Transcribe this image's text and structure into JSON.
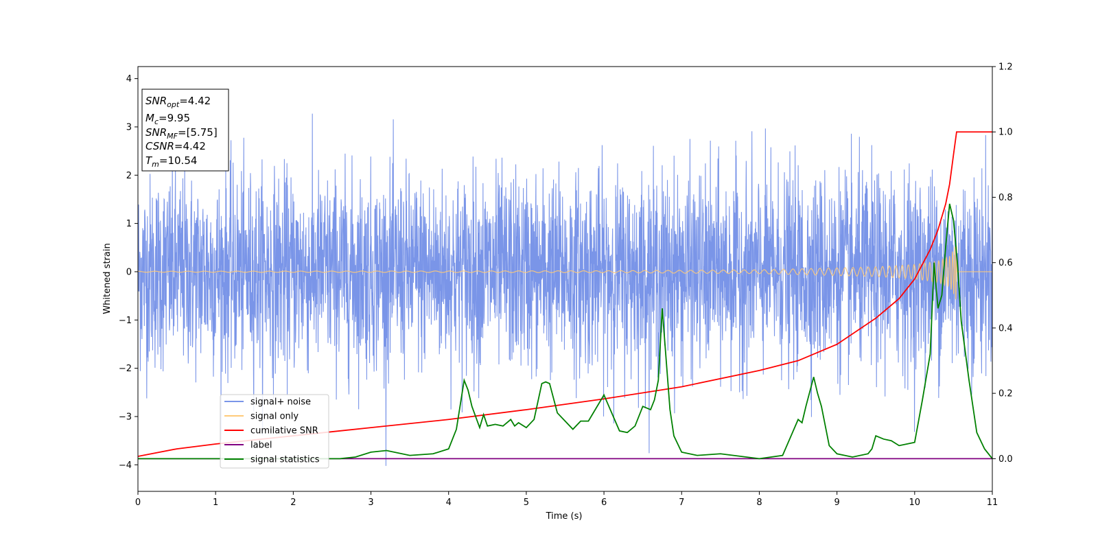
{
  "chart_data": {
    "type": "line",
    "xlabel": "Time (s)",
    "ylabel": "Whitened strain",
    "xlim": [
      0,
      11
    ],
    "ylim": [
      -4.55,
      4.25
    ],
    "y2lim": [
      -0.1,
      1.2
    ],
    "x_ticks": [
      0,
      1,
      2,
      3,
      4,
      5,
      6,
      7,
      8,
      9,
      10,
      11
    ],
    "y_ticks": [
      -4,
      -3,
      -2,
      -1,
      0,
      1,
      2,
      3,
      4
    ],
    "y2_ticks": [
      0.0,
      0.2,
      0.4,
      0.6,
      0.8,
      1.0,
      1.2
    ],
    "x_tick_labels": [
      "0",
      "1",
      "2",
      "3",
      "4",
      "5",
      "6",
      "7",
      "8",
      "9",
      "10",
      "11"
    ],
    "y_tick_labels": [
      "−4",
      "−3",
      "−2",
      "−1",
      "0",
      "1",
      "2",
      "3",
      "4"
    ],
    "y2_tick_labels": [
      "0.0",
      "0.2",
      "0.4",
      "0.6",
      "0.8",
      "1.0",
      "1.2"
    ],
    "grid": false,
    "legend_position": "lower-left",
    "annotations": [
      {
        "name": "SNR",
        "sub": "opt",
        "value": "=4.42"
      },
      {
        "name": "M",
        "sub": "c",
        "value": "=9.95"
      },
      {
        "name": "SNR",
        "sub": "MF",
        "value": "=[5.75]"
      },
      {
        "name": "CSNR",
        "sub": "",
        "value": "=4.42"
      },
      {
        "name": "T",
        "sub": "m",
        "value": "=10.54"
      }
    ],
    "series": [
      {
        "name": "signal+ noise",
        "color": "#7a95e8",
        "axis": "left",
        "kind": "noise",
        "approx_std": 1.0,
        "approx_peak": 3.85,
        "x_range": [
          0,
          11
        ]
      },
      {
        "name": "signal only",
        "color": "#ffca78",
        "axis": "left",
        "kind": "chirp",
        "envelope_x": [
          0,
          4,
          6,
          8,
          9,
          9.5,
          10,
          10.3,
          10.45,
          10.5,
          10.54
        ],
        "envelope_y": [
          0.01,
          0.015,
          0.02,
          0.04,
          0.08,
          0.1,
          0.15,
          0.22,
          0.32,
          0.45,
          0.62
        ]
      },
      {
        "name": "cumilative SNR",
        "color": "#ff0000",
        "axis": "right",
        "x": [
          0,
          0.5,
          1,
          2,
          3,
          4,
          5,
          6,
          7,
          8,
          8.5,
          9,
          9.5,
          9.8,
          10,
          10.2,
          10.3,
          10.4,
          10.45,
          10.5,
          10.54,
          11
        ],
        "y": [
          0.007,
          0.03,
          0.045,
          0.07,
          0.095,
          0.12,
          0.15,
          0.183,
          0.22,
          0.27,
          0.3,
          0.35,
          0.43,
          0.49,
          0.55,
          0.64,
          0.7,
          0.78,
          0.84,
          0.93,
          1.0,
          1.0
        ]
      },
      {
        "name": "label",
        "color": "#800080",
        "axis": "right",
        "x": [
          0,
          11
        ],
        "y": [
          0.0,
          0.0
        ]
      },
      {
        "name": "signal statistics",
        "color": "#008000",
        "axis": "right",
        "x": [
          0,
          1,
          2,
          2.6,
          2.8,
          3.0,
          3.2,
          3.5,
          3.8,
          4.0,
          4.1,
          4.2,
          4.25,
          4.3,
          4.4,
          4.45,
          4.5,
          4.6,
          4.7,
          4.8,
          4.85,
          4.9,
          5.0,
          5.1,
          5.2,
          5.25,
          5.3,
          5.4,
          5.5,
          5.6,
          5.7,
          5.8,
          6.0,
          6.1,
          6.2,
          6.3,
          6.4,
          6.5,
          6.6,
          6.65,
          6.7,
          6.75,
          6.85,
          6.9,
          7.0,
          7.2,
          7.5,
          8.0,
          8.3,
          8.5,
          8.55,
          8.6,
          8.7,
          8.75,
          8.8,
          8.9,
          9.0,
          9.2,
          9.4,
          9.45,
          9.5,
          9.6,
          9.7,
          9.8,
          9.9,
          10.0,
          10.1,
          10.2,
          10.25,
          10.3,
          10.35,
          10.4,
          10.45,
          10.5,
          10.55,
          10.6,
          10.7,
          10.8,
          10.9,
          11.0
        ],
        "y": [
          0.0,
          0.0,
          0.0,
          0.0,
          0.005,
          0.02,
          0.025,
          0.01,
          0.015,
          0.03,
          0.09,
          0.24,
          0.21,
          0.16,
          0.095,
          0.135,
          0.1,
          0.105,
          0.1,
          0.12,
          0.1,
          0.11,
          0.095,
          0.12,
          0.23,
          0.235,
          0.23,
          0.14,
          0.115,
          0.09,
          0.115,
          0.115,
          0.195,
          0.14,
          0.085,
          0.08,
          0.1,
          0.16,
          0.15,
          0.18,
          0.24,
          0.46,
          0.15,
          0.07,
          0.02,
          0.01,
          0.015,
          0.0,
          0.01,
          0.12,
          0.11,
          0.16,
          0.25,
          0.2,
          0.16,
          0.04,
          0.015,
          0.005,
          0.015,
          0.03,
          0.07,
          0.06,
          0.055,
          0.04,
          0.045,
          0.05,
          0.18,
          0.32,
          0.6,
          0.46,
          0.5,
          0.65,
          0.78,
          0.73,
          0.6,
          0.42,
          0.24,
          0.08,
          0.03,
          0.0
        ]
      }
    ]
  }
}
